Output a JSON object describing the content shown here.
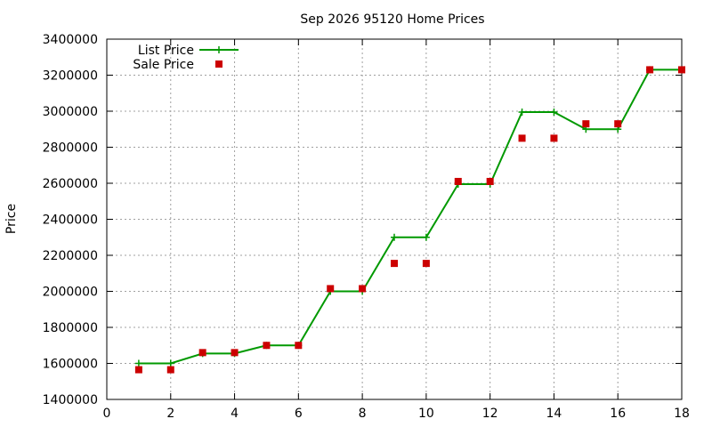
{
  "chart_data": {
    "type": "line",
    "title": "Sep 2026 95120 Home Prices",
    "xlabel": "",
    "ylabel": "Price",
    "xlim": [
      0,
      18
    ],
    "ylim": [
      1400000,
      3400000
    ],
    "xticks": [
      "0",
      "2",
      "4",
      "6",
      "8",
      "10",
      "12",
      "14",
      "16",
      "18"
    ],
    "yticks": [
      "1400000",
      "1600000",
      "1800000",
      "2000000",
      "2200000",
      "2400000",
      "2600000",
      "2800000",
      "3000000",
      "3200000",
      "3400000"
    ],
    "grid": true,
    "legend_position": "top-left",
    "series": [
      {
        "name": "List Price",
        "style": "line-plus",
        "color": "#009900",
        "x": [
          1,
          2,
          3,
          4,
          5,
          6,
          7,
          8,
          9,
          10,
          11,
          12,
          13,
          14,
          15,
          16,
          17,
          18
        ],
        "y": [
          1600000,
          1600000,
          1655000,
          1655000,
          1700000,
          1700000,
          2000000,
          2000000,
          2300000,
          2300000,
          2595000,
          2595000,
          2995000,
          2995000,
          2900000,
          2900000,
          3230000,
          3230000
        ]
      },
      {
        "name": "Sale Price",
        "style": "square-points",
        "color": "#cc0000",
        "x": [
          1,
          2,
          3,
          4,
          5,
          6,
          7,
          8,
          9,
          10,
          11,
          12,
          13,
          14,
          15,
          16,
          17,
          18
        ],
        "y": [
          1565000,
          1565000,
          1660000,
          1660000,
          1700000,
          1700000,
          2015000,
          2015000,
          2155000,
          2155000,
          2610000,
          2610000,
          2850000,
          2850000,
          2930000,
          2930000,
          3230000,
          3230000
        ]
      }
    ]
  }
}
